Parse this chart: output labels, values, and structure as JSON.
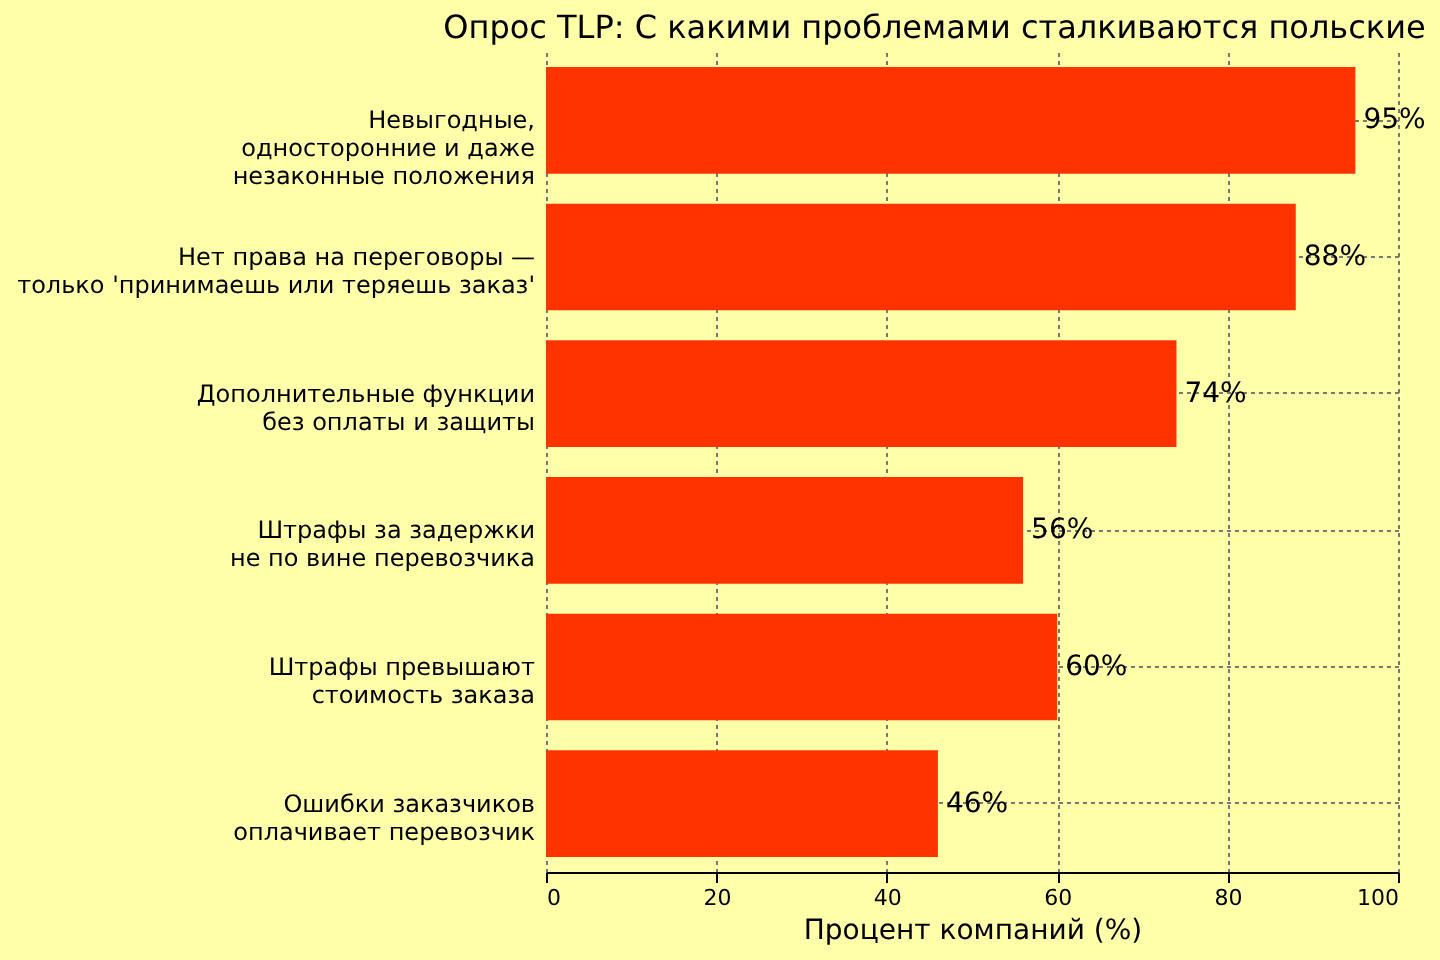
{
  "chart_data": {
    "type": "bar",
    "orientation": "horizontal",
    "title": "Опрос TLP: С какими проблемами сталкиваются польские",
    "xlabel": "Процент компаний (%)",
    "categories": [
      "Невыгодные,\nодносторонние и даже\nнезаконные положения",
      "Нет права на переговоры —\nтолько 'принимаешь или теряешь заказ'",
      "Дополнительные функции\nбез оплаты и защиты",
      "Штрафы за задержки\nне по вине перевозчика",
      "Штрафы превышают\nстоимость заказа",
      "Ошибки заказчиков\nоплачивает перевозчик"
    ],
    "values": [
      95,
      88,
      74,
      56,
      60,
      46
    ],
    "value_labels": [
      "95%",
      "88%",
      "74%",
      "56%",
      "60%",
      "46%"
    ],
    "color": "#ff3300",
    "xlim": [
      0,
      100
    ],
    "xticks": [
      0,
      20,
      40,
      60,
      80,
      100
    ],
    "grid": true
  }
}
